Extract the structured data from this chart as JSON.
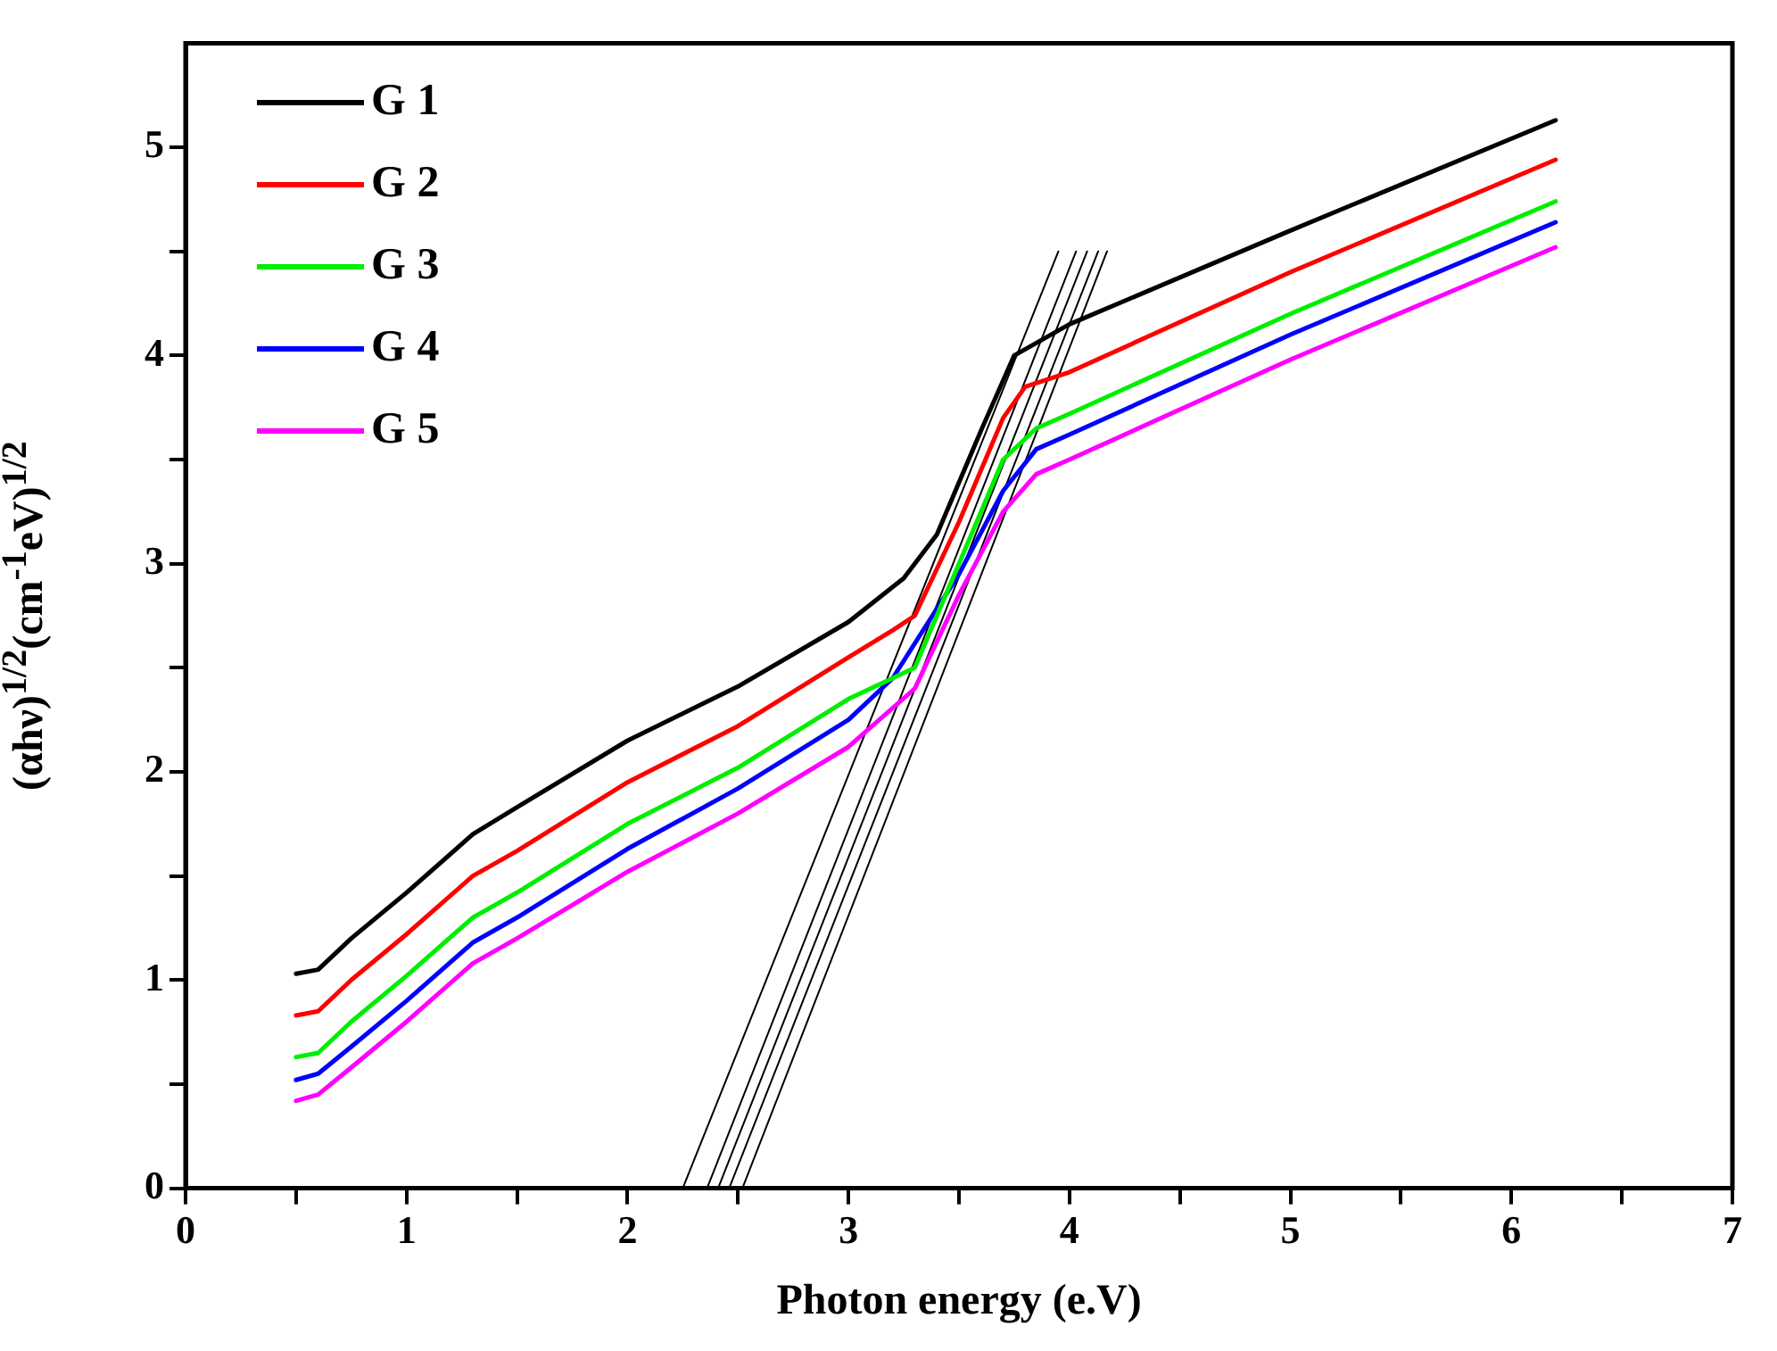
{
  "chart_data": {
    "type": "line",
    "xlabel": "Photon energy (e.V)",
    "ylabel": "(αhν)$^{1/2}$(cm$^{-1}$eV)$^{1/2}$",
    "xlim": [
      0,
      7
    ],
    "ylim": [
      0,
      5.5
    ],
    "xticks": [
      0,
      {
        "value": 0.5,
        "label": null
      },
      1,
      {
        "value": 1.5,
        "label": null
      },
      2,
      {
        "value": 2.5,
        "label": null
      },
      3,
      {
        "value": 3.5,
        "label": null
      },
      4,
      {
        "value": 4.5,
        "label": null
      },
      5,
      {
        "value": 5.5,
        "label": null
      },
      6,
      {
        "value": 6.5,
        "label": null
      },
      7
    ],
    "yticks": [
      0,
      {
        "value": 0.5,
        "label": null
      },
      1,
      {
        "value": 1.5,
        "label": null
      },
      2,
      {
        "value": 2.5,
        "label": null
      },
      3,
      {
        "value": 3.5,
        "label": null
      },
      4,
      {
        "value": 4.5,
        "label": null
      },
      5
    ],
    "legend": "top left",
    "grid": false,
    "marker": "none",
    "line_style": "solid",
    "series": [
      {
        "name": "G 1",
        "color": "#000000",
        "x": [
          0.5,
          0.6,
          0.75,
          1,
          1.3,
          1.5,
          2,
          2.5,
          3,
          3.25,
          3.4,
          3.6,
          3.75,
          4,
          5,
          6.2
        ],
        "values": [
          1.03,
          1.05,
          1.2,
          1.42,
          1.7,
          1.83,
          2.15,
          2.41,
          2.72,
          2.93,
          3.14,
          3.64,
          4.0,
          4.15,
          4.6,
          5.13
        ]
      },
      {
        "name": "G 2",
        "color": "#ff0000",
        "x": [
          0.5,
          0.6,
          0.75,
          1,
          1.3,
          1.5,
          2,
          2.5,
          3,
          3.2,
          3.3,
          3.5,
          3.7,
          3.8,
          4,
          5,
          6.2
        ],
        "values": [
          0.83,
          0.85,
          1.0,
          1.22,
          1.5,
          1.62,
          1.95,
          2.22,
          2.55,
          2.68,
          2.75,
          3.2,
          3.7,
          3.85,
          3.92,
          4.4,
          4.94
        ]
      },
      {
        "name": "G 3",
        "color": "#00ee00",
        "x": [
          0.5,
          0.6,
          0.75,
          1,
          1.3,
          1.5,
          2,
          2.5,
          3,
          3.2,
          3.3,
          3.5,
          3.7,
          3.85,
          4,
          5,
          6.2
        ],
        "values": [
          0.63,
          0.65,
          0.8,
          1.02,
          1.3,
          1.42,
          1.75,
          2.02,
          2.35,
          2.45,
          2.5,
          3.0,
          3.5,
          3.65,
          3.72,
          4.2,
          4.74
        ]
      },
      {
        "name": "G 4",
        "color": "#0000ff",
        "x": [
          0.5,
          0.6,
          0.75,
          1,
          1.3,
          1.5,
          2,
          2.5,
          3,
          3.2,
          3.5,
          3.7,
          3.85,
          4,
          5,
          6.2
        ],
        "values": [
          0.52,
          0.55,
          0.68,
          0.9,
          1.18,
          1.3,
          1.63,
          1.92,
          2.25,
          2.45,
          2.95,
          3.35,
          3.55,
          3.62,
          4.1,
          4.64
        ]
      },
      {
        "name": "G 5",
        "color": "#ff00ff",
        "x": [
          0.5,
          0.6,
          0.75,
          1,
          1.3,
          1.5,
          2,
          2.5,
          3,
          3.3,
          3.5,
          3.7,
          3.85,
          4,
          5,
          6.2
        ],
        "values": [
          0.42,
          0.45,
          0.58,
          0.8,
          1.08,
          1.2,
          1.52,
          1.8,
          2.12,
          2.4,
          2.85,
          3.25,
          3.43,
          3.5,
          3.98,
          4.52
        ]
      },
      {
        "type": "line",
        "color": "#000000",
        "x": [
          2.25,
          3.95
        ],
        "values": [
          0,
          4.5
        ]
      },
      {
        "type": "line",
        "color": "#000000",
        "x": [
          2.36,
          4.03
        ],
        "values": [
          0,
          4.5
        ]
      },
      {
        "type": "line",
        "color": "#000000",
        "x": [
          2.41,
          4.08
        ],
        "values": [
          0,
          4.5
        ]
      },
      {
        "type": "line",
        "color": "#000000",
        "x": [
          2.46,
          4.13
        ],
        "values": [
          0,
          4.5
        ]
      },
      {
        "type": "line",
        "color": "#000000",
        "x": [
          2.52,
          4.17
        ],
        "values": [
          0,
          4.5
        ]
      }
    ]
  }
}
